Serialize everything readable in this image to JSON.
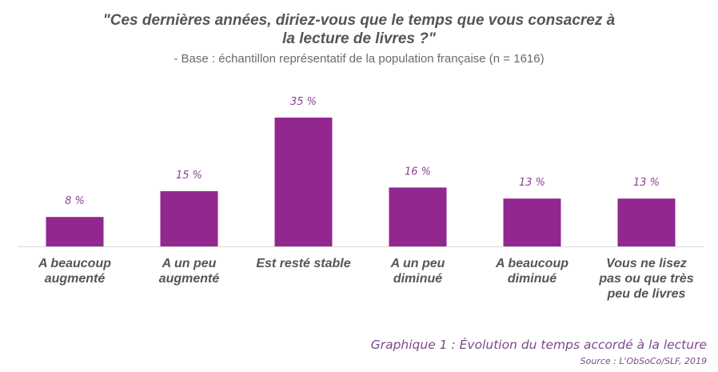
{
  "header": {
    "title_line1": "\"Ces dernières années, diriez-vous que le temps que vous consacrez à",
    "title_line2": "la lecture de livres ?\"",
    "subtitle": "- Base : échantillon représentatif de la population française (n = 1616)"
  },
  "footer": {
    "caption": "Graphique 1 : Évolution du temps accordé à la lecture",
    "source": "Source : L'ObSoCo/SLF, 2019"
  },
  "chart_data": {
    "type": "bar",
    "categories": [
      [
        "A beaucoup",
        "augmenté"
      ],
      [
        "A un peu",
        "augmenté"
      ],
      [
        "Est resté stable"
      ],
      [
        "A un peu",
        "diminué"
      ],
      [
        "A beaucoup",
        "diminué"
      ],
      [
        "Vous ne lisez",
        "pas ou que très",
        "peu de livres"
      ]
    ],
    "values": [
      8,
      15,
      35,
      16,
      13,
      13
    ],
    "data_labels": [
      "8 %",
      "15 %",
      "35 %",
      "16 %",
      "13 %",
      "13 %"
    ],
    "ylim": [
      0,
      40
    ],
    "grid": false,
    "legend": "none",
    "colors": {
      "bar": "#92278f",
      "data_label": "#8b3f94",
      "category_label": "#555555",
      "axis": "#d9d9d9"
    }
  }
}
